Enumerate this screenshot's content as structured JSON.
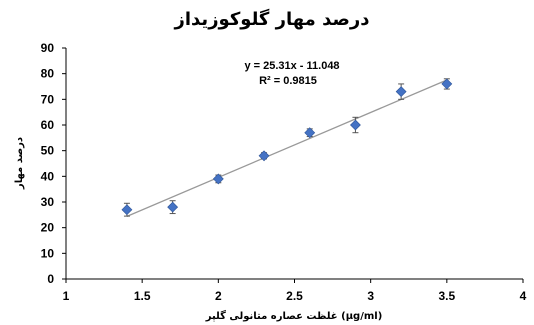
{
  "chart_data": {
    "type": "scatter",
    "title": "درصد مهار گلوکوزیداز",
    "xlabel": "غلظت عصاره متانولی گلپر (µg/ml)",
    "ylabel": "درصد مهار",
    "xlim": [
      1,
      4
    ],
    "ylim": [
      0,
      90
    ],
    "xticks": [
      1,
      1.5,
      2,
      2.5,
      3,
      3.5,
      4
    ],
    "xtick_labels": [
      "1",
      "1.5",
      "2",
      "2.5",
      "3",
      "3.5",
      "4"
    ],
    "yticks": [
      0,
      10,
      20,
      30,
      40,
      50,
      60,
      70,
      80,
      90
    ],
    "ytick_labels": [
      "0",
      "10",
      "20",
      "30",
      "40",
      "50",
      "60",
      "70",
      "80",
      "90"
    ],
    "grid": false,
    "legend": false,
    "series": [
      {
        "x": [
          1.4,
          1.7,
          2.0,
          2.3,
          2.6,
          2.9,
          3.2,
          3.5
        ],
        "y": [
          27,
          28,
          39,
          48,
          57,
          60,
          73,
          76
        ],
        "error": [
          2.5,
          2.5,
          1.5,
          1.2,
          1.5,
          3,
          3,
          2
        ],
        "color": "#4472c4",
        "marker": "diamond"
      }
    ],
    "trendline": {
      "slope": 25.31,
      "intercept": -11.048,
      "x_range": [
        1.4,
        3.5
      ],
      "color": "#999999"
    },
    "annotations": {
      "equation": "y = 25.31x - 11.048",
      "r_squared": "R² = 0.9815"
    }
  }
}
